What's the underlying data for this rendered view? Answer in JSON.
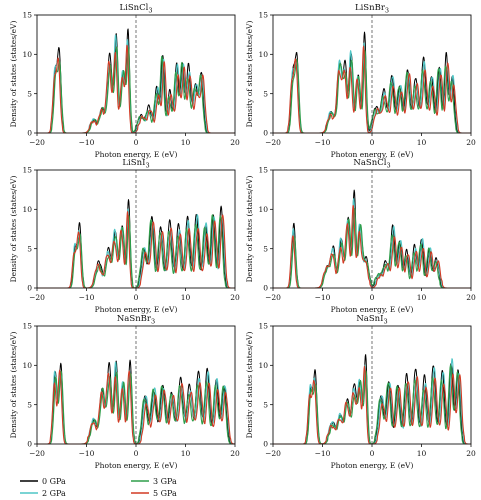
{
  "series_meta": [
    {
      "name": "0 GPa",
      "color": "#000000"
    },
    {
      "name": "2 GPa",
      "color": "#4fc6c6"
    },
    {
      "name": "3 GPa",
      "color": "#2e9e4a"
    },
    {
      "name": "5 GPa",
      "color": "#d23a24"
    }
  ],
  "legend": {
    "items": [
      "0 GPa",
      "2 GPa",
      "3 GPa",
      "5 GPa"
    ],
    "placement": "bottom-left"
  },
  "chart_data": [
    {
      "type": "line",
      "title": "LiSnCl₃",
      "xlabel": "Photon energy, E (eV)",
      "ylabel": "Density of states (states/eV)",
      "xlim": [
        -20,
        20
      ],
      "ylim": [
        0,
        15
      ],
      "xticks": [
        "−20",
        "−10",
        "0",
        "10",
        "20"
      ],
      "yticks": [
        "0",
        "5",
        "10",
        "15"
      ],
      "fermi_level": 0,
      "peaks": [
        [
          -16.3,
          7.5,
          0.35
        ],
        [
          -15.5,
          9.5,
          0.35
        ],
        [
          -8.5,
          1.5,
          0.6
        ],
        [
          -6.8,
          3.0,
          0.5
        ],
        [
          -5.3,
          9.5,
          0.45
        ],
        [
          -4.0,
          12.0,
          0.35
        ],
        [
          -2.6,
          8.0,
          0.4
        ],
        [
          -1.6,
          12.0,
          0.3
        ],
        [
          1.0,
          2.0,
          0.6
        ],
        [
          2.6,
          3.0,
          0.5
        ],
        [
          4.2,
          5.5,
          0.4
        ],
        [
          5.4,
          10.0,
          0.35
        ],
        [
          6.8,
          5.0,
          0.4
        ],
        [
          8.2,
          8.5,
          0.4
        ],
        [
          9.4,
          9.0,
          0.35
        ],
        [
          10.6,
          8.0,
          0.4
        ],
        [
          12.0,
          6.0,
          0.45
        ],
        [
          13.2,
          7.5,
          0.4
        ]
      ]
    },
    {
      "type": "line",
      "title": "LiSnBr₃",
      "xlabel": "Photon energy, E (eV)",
      "ylabel": "Density of states (states/eV)",
      "xlim": [
        -20,
        20
      ],
      "ylim": [
        0,
        15
      ],
      "xticks": [
        "−20",
        "−10",
        "0",
        "10",
        "20"
      ],
      "yticks": [
        "0",
        "5",
        "10",
        "15"
      ],
      "fermi_level": 0,
      "peaks": [
        [
          -16.0,
          7.0,
          0.35
        ],
        [
          -15.2,
          9.5,
          0.35
        ],
        [
          -8.2,
          2.5,
          0.6
        ],
        [
          -6.5,
          9.0,
          0.45
        ],
        [
          -5.4,
          8.0,
          0.4
        ],
        [
          -4.2,
          10.0,
          0.35
        ],
        [
          -2.8,
          7.5,
          0.4
        ],
        [
          -1.5,
          12.0,
          0.3
        ],
        [
          0.8,
          3.0,
          0.6
        ],
        [
          2.4,
          5.0,
          0.5
        ],
        [
          4.0,
          7.0,
          0.45
        ],
        [
          5.6,
          6.0,
          0.45
        ],
        [
          7.2,
          8.0,
          0.45
        ],
        [
          8.8,
          6.5,
          0.45
        ],
        [
          10.4,
          9.0,
          0.45
        ],
        [
          12.0,
          7.0,
          0.45
        ],
        [
          13.6,
          8.5,
          0.4
        ],
        [
          15.0,
          9.5,
          0.35
        ],
        [
          16.2,
          7.0,
          0.4
        ]
      ]
    },
    {
      "type": "line",
      "title": "LiSnI₃",
      "xlabel": "Photon energy, E (eV)",
      "ylabel": "Density of states (states/eV)",
      "xlim": [
        -20,
        20
      ],
      "ylim": [
        0,
        15
      ],
      "xticks": [
        "−20",
        "−10",
        "0",
        "10",
        "20"
      ],
      "yticks": [
        "0",
        "5",
        "10",
        "15"
      ],
      "fermi_level": 0,
      "peaks": [
        [
          -12.3,
          5.0,
          0.35
        ],
        [
          -11.4,
          7.5,
          0.35
        ],
        [
          -7.5,
          3.0,
          0.6
        ],
        [
          -5.6,
          4.5,
          0.5
        ],
        [
          -4.2,
          7.0,
          0.45
        ],
        [
          -2.8,
          8.0,
          0.4
        ],
        [
          -1.5,
          10.5,
          0.3
        ],
        [
          1.6,
          5.0,
          0.5
        ],
        [
          3.2,
          9.0,
          0.45
        ],
        [
          5.0,
          7.5,
          0.45
        ],
        [
          6.8,
          8.0,
          0.45
        ],
        [
          8.6,
          7.5,
          0.45
        ],
        [
          10.4,
          8.5,
          0.45
        ],
        [
          12.2,
          9.0,
          0.45
        ],
        [
          14.0,
          8.0,
          0.45
        ],
        [
          15.6,
          9.5,
          0.4
        ],
        [
          17.2,
          10.0,
          0.4
        ]
      ]
    },
    {
      "type": "line",
      "title": "NaSnCl₃",
      "xlabel": "Photon energy, E (eV)",
      "ylabel": "Density of states (states/eV)",
      "xlim": [
        -20,
        20
      ],
      "ylim": [
        0,
        15
      ],
      "xticks": [
        "−20",
        "−10",
        "0",
        "10",
        "20"
      ],
      "yticks": [
        "0",
        "5",
        "10",
        "15"
      ],
      "fermi_level": 0,
      "peaks": [
        [
          -15.8,
          7.5,
          0.35
        ],
        [
          -9.0,
          2.5,
          0.6
        ],
        [
          -7.8,
          4.5,
          0.45
        ],
        [
          -6.2,
          6.0,
          0.45
        ],
        [
          -4.8,
          9.0,
          0.4
        ],
        [
          -3.6,
          11.5,
          0.3
        ],
        [
          -2.4,
          8.0,
          0.4
        ],
        [
          -1.2,
          3.5,
          0.5
        ],
        [
          1.4,
          1.5,
          0.6
        ],
        [
          2.8,
          3.0,
          0.5
        ],
        [
          4.2,
          7.5,
          0.4
        ],
        [
          5.6,
          6.0,
          0.4
        ],
        [
          7.0,
          4.5,
          0.4
        ],
        [
          8.6,
          5.0,
          0.4
        ],
        [
          10.0,
          6.0,
          0.4
        ],
        [
          11.6,
          5.0,
          0.4
        ],
        [
          13.0,
          3.5,
          0.45
        ]
      ]
    },
    {
      "type": "line",
      "title": "NaSnBr₃",
      "xlabel": "Photon energy, E (eV)",
      "ylabel": "Density of states (states/eV)",
      "xlim": [
        -20,
        20
      ],
      "ylim": [
        0,
        15
      ],
      "xticks": [
        "−20",
        "−10",
        "0",
        "10",
        "20"
      ],
      "yticks": [
        "0",
        "5",
        "10",
        "15"
      ],
      "fermi_level": 0,
      "peaks": [
        [
          -16.3,
          9.0,
          0.35
        ],
        [
          -15.2,
          10.0,
          0.35
        ],
        [
          -8.5,
          3.0,
          0.6
        ],
        [
          -6.8,
          7.0,
          0.45
        ],
        [
          -5.4,
          9.5,
          0.45
        ],
        [
          -4.0,
          10.0,
          0.35
        ],
        [
          -2.6,
          8.0,
          0.4
        ],
        [
          -1.2,
          10.0,
          0.35
        ],
        [
          1.8,
          6.0,
          0.5
        ],
        [
          3.6,
          7.0,
          0.5
        ],
        [
          5.4,
          7.5,
          0.5
        ],
        [
          7.2,
          6.5,
          0.5
        ],
        [
          9.0,
          8.0,
          0.5
        ],
        [
          10.8,
          7.0,
          0.5
        ],
        [
          12.6,
          8.5,
          0.5
        ],
        [
          14.4,
          9.0,
          0.45
        ],
        [
          16.2,
          8.0,
          0.45
        ],
        [
          17.8,
          7.5,
          0.45
        ]
      ]
    },
    {
      "type": "line",
      "title": "NaSnI₃",
      "xlabel": "Photon energy, E (eV)",
      "ylabel": "Density of states (states/eV)",
      "xlim": [
        -20,
        20
      ],
      "ylim": [
        0,
        15
      ],
      "xticks": [
        "−20",
        "−10",
        "0",
        "10",
        "20"
      ],
      "yticks": [
        "0",
        "5",
        "10",
        "15"
      ],
      "fermi_level": 0,
      "peaks": [
        [
          -12.4,
          7.0,
          0.35
        ],
        [
          -11.5,
          8.5,
          0.35
        ],
        [
          -8.0,
          2.5,
          0.6
        ],
        [
          -6.4,
          3.5,
          0.5
        ],
        [
          -5.0,
          5.5,
          0.45
        ],
        [
          -3.6,
          7.0,
          0.45
        ],
        [
          -2.4,
          8.0,
          0.4
        ],
        [
          -1.3,
          10.5,
          0.3
        ],
        [
          1.8,
          6.0,
          0.5
        ],
        [
          3.4,
          8.0,
          0.45
        ],
        [
          5.2,
          7.5,
          0.45
        ],
        [
          7.0,
          8.5,
          0.45
        ],
        [
          8.8,
          9.0,
          0.45
        ],
        [
          10.6,
          8.0,
          0.45
        ],
        [
          12.4,
          9.5,
          0.45
        ],
        [
          14.2,
          9.0,
          0.45
        ],
        [
          16.0,
          10.5,
          0.4
        ],
        [
          17.4,
          9.5,
          0.4
        ]
      ]
    }
  ]
}
